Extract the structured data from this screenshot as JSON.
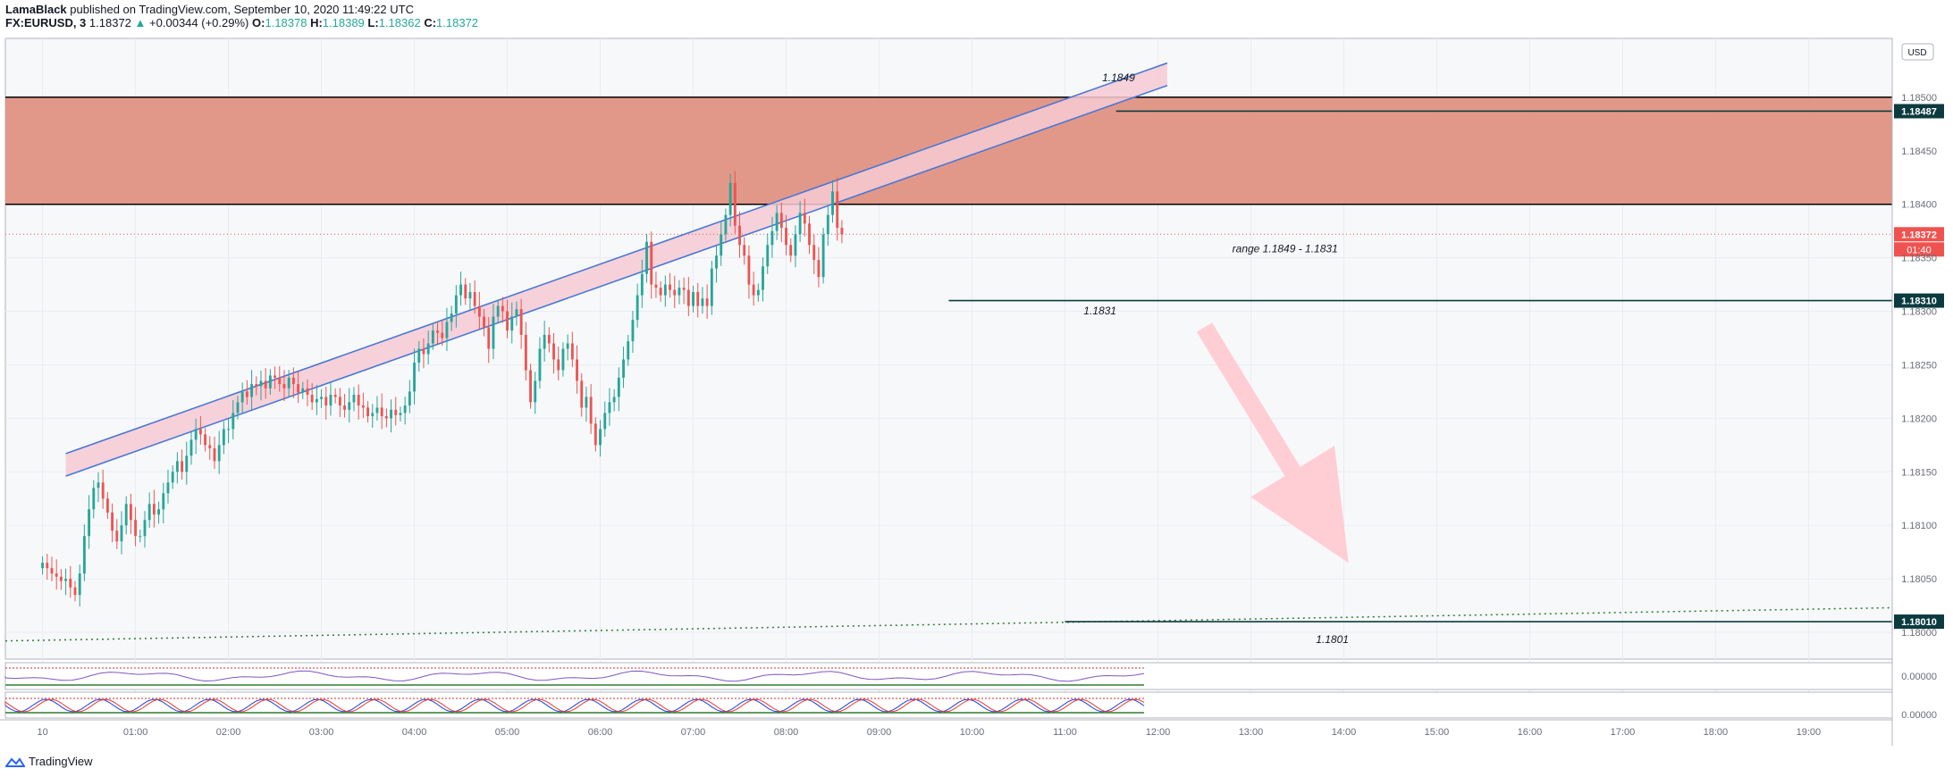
{
  "header": {
    "author": "LamaBlack",
    "published": " published on TradingView.com, September 10, 2020 11:49:22 UTC",
    "symbol": "FX:EURUSD, 3",
    "last": "1.18372",
    "change_arrow": "▲",
    "change": "+0.00344 (+0.29%)",
    "o_label": "O:",
    "o": "1.18378",
    "h_label": "H:",
    "h": "1.18389",
    "l_label": "L:",
    "l": "1.18362",
    "c_label": "C:",
    "c": "1.18372"
  },
  "currency_button": "USD",
  "footer": {
    "brand": "TradingView",
    "logo_icon": "tradingview-logo-icon"
  },
  "chart_data": {
    "type": "candlestick",
    "symbol": "FX:EURUSD",
    "interval": "3",
    "ylim": [
      1.17975,
      1.18555
    ],
    "y_ticks": [
      "1.18500",
      "1.18450",
      "1.18400",
      "1.18350",
      "1.18300",
      "1.18250",
      "1.18200",
      "1.18150",
      "1.18100",
      "1.18050",
      "1.18000"
    ],
    "x_ticks": [
      "10",
      "01:00",
      "02:00",
      "03:00",
      "04:00",
      "05:00",
      "06:00",
      "07:00",
      "08:00",
      "09:00",
      "10:00",
      "11:00",
      "12:00",
      "13:00",
      "14:00",
      "15:00",
      "16:00",
      "17:00",
      "18:00",
      "19:00"
    ],
    "x_range_hours": [
      -0.4,
      19.9
    ],
    "colors": {
      "up": "#26a69a",
      "down": "#ef5350",
      "zone": "#e08f7f",
      "channel": "#4a78d4",
      "channel_fill": "#f6cad3",
      "arrow": "#ffc9cf",
      "trend_dotted": "#2e7d32",
      "level_bg": "#0c3b3f",
      "current_bg": "#ef5350"
    },
    "resistance_zone": {
      "from": 1.184,
      "to": 1.185
    },
    "channel_line_1": {
      "start": [
        0.25,
        1.18167
      ],
      "end": [
        12.1,
        1.18532
      ]
    },
    "channel_line_2": {
      "start": [
        0.25,
        1.18146
      ],
      "end": [
        12.1,
        1.18511
      ]
    },
    "dotted_trendline": {
      "start": [
        -0.4,
        1.17992
      ],
      "end": [
        19.9,
        1.18023
      ]
    },
    "levels": [
      {
        "price": 1.18487,
        "label": "1.18487",
        "from_hour": 11.55
      },
      {
        "price": 1.1831,
        "label": "1.18310",
        "from_hour": 9.75
      },
      {
        "price": 1.1801,
        "label": "1.18010",
        "from_hour": 11.0
      }
    ],
    "current_price": {
      "price": 1.18372,
      "label": "1.18372",
      "countdown": "01:40"
    },
    "annotations": [
      {
        "text": "1.1849",
        "hour": 11.4,
        "price": 1.18515
      },
      {
        "text": "range 1.1849 - 1.1831",
        "hour": 12.8,
        "price": 1.18355
      },
      {
        "text": "1.1831",
        "hour": 11.2,
        "price": 1.18297
      },
      {
        "text": "1.1801",
        "hour": 13.7,
        "price": 1.1799
      }
    ],
    "arrow_down": {
      "from": [
        12.5,
        1.18285
      ],
      "to": [
        14.05,
        1.18065
      ]
    },
    "closes": [
      1.18065,
      1.1806,
      1.18055,
      1.18052,
      1.18048,
      1.1805,
      1.18042,
      1.18035,
      1.18055,
      1.1809,
      1.18115,
      1.18135,
      1.1814,
      1.18125,
      1.18112,
      1.18095,
      1.18085,
      1.181,
      1.1812,
      1.18105,
      1.1809,
      1.1809,
      1.18105,
      1.1812,
      1.1811,
      1.18115,
      1.1813,
      1.1814,
      1.1815,
      1.1816,
      1.1815,
      1.18165,
      1.1818,
      1.1819,
      1.18185,
      1.18175,
      1.18172,
      1.1816,
      1.18175,
      1.1819,
      1.1819,
      1.18205,
      1.18215,
      1.18225,
      1.1822,
      1.18232,
      1.1823,
      1.18235,
      1.18228,
      1.1824,
      1.18238,
      1.18232,
      1.18228,
      1.18238,
      1.18232,
      1.18224,
      1.18228,
      1.18222,
      1.18215,
      1.18218,
      1.1822,
      1.18212,
      1.18222,
      1.1822,
      1.18212,
      1.18208,
      1.18215,
      1.18222,
      1.18212,
      1.1821,
      1.18202,
      1.18205,
      1.1821,
      1.18202,
      1.182,
      1.18208,
      1.18203,
      1.18205,
      1.18212,
      1.18225,
      1.18252,
      1.18265,
      1.1826,
      1.1827,
      1.18282,
      1.1828,
      1.18275,
      1.1829,
      1.18298,
      1.18315,
      1.18325,
      1.18312,
      1.18318,
      1.18305,
      1.18295,
      1.18285,
      1.18265,
      1.18295,
      1.18305,
      1.183,
      1.18282,
      1.18295,
      1.18302,
      1.18278,
      1.18245,
      1.18215,
      1.18235,
      1.18265,
      1.18278,
      1.1827,
      1.18255,
      1.18245,
      1.18265,
      1.1827,
      1.18255,
      1.18235,
      1.1821,
      1.1822,
      1.18195,
      1.18175,
      1.1819,
      1.18205,
      1.18215,
      1.1822,
      1.18238,
      1.18255,
      1.18272,
      1.18292,
      1.18315,
      1.18335,
      1.18365,
      1.18325,
      1.18322,
      1.18315,
      1.18325,
      1.1832,
      1.18315,
      1.18322,
      1.1832,
      1.18305,
      1.18318,
      1.18305,
      1.18312,
      1.18305,
      1.1834,
      1.18352,
      1.18372,
      1.1839,
      1.1842,
      1.1838,
      1.18362,
      1.18352,
      1.18325,
      1.18315,
      1.1832,
      1.18342,
      1.18362,
      1.18375,
      1.18392,
      1.18378,
      1.18362,
      1.18352,
      1.18372,
      1.18392,
      1.18382,
      1.18362,
      1.18348,
      1.18332,
      1.18372,
      1.1839,
      1.18412,
      1.18378,
      1.18372
    ]
  }
}
